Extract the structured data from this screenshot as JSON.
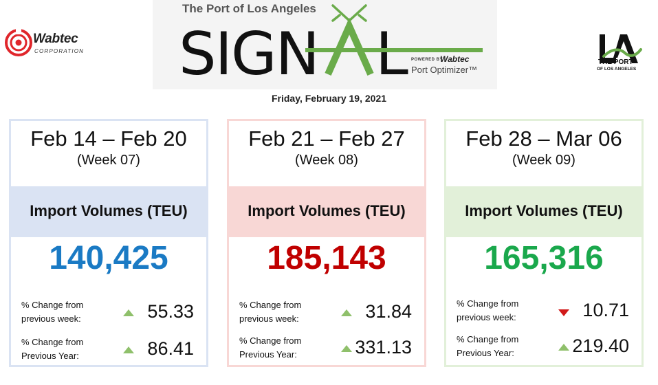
{
  "header": {
    "wabtec_logo": {
      "name": "Wabtec",
      "subtitle": "CORPORATION"
    },
    "banner": {
      "top_text": "The Port of Los Angeles",
      "signal_word": "SIGNAL",
      "powered_by": "POWERED BY",
      "powered_brand": "Wabtec",
      "product": "Port Optimizer™"
    },
    "la_logo": {
      "line1": "THE PORT",
      "line2": "OF LOS ANGELES"
    },
    "date": "Friday, February 19, 2021"
  },
  "colors": {
    "card1_accent": "#1a7ac4",
    "card2_accent": "#c00000",
    "card3_accent": "#1aa84c",
    "card1_band": "#dae3f3",
    "card2_band": "#f8d7d5",
    "card3_band": "#e2f0d9",
    "arrow_up": "#8fc06b",
    "arrow_down": "#d11a1a",
    "signal_green": "#6aab4a"
  },
  "cards": [
    {
      "dates": "Feb 14 – Feb 20",
      "week": "(Week 07)",
      "metric_title": "Import Volumes (TEU)",
      "value": "140,425",
      "change_week_label_1": "% Change from",
      "change_week_label_2": "previous week:",
      "change_week_direction": "up",
      "change_week_value": "55.33",
      "change_year_label_1": "% Change from",
      "change_year_label_2": "Previous Year:",
      "change_year_direction": "up",
      "change_year_value": "86.41"
    },
    {
      "dates": "Feb 21 – Feb 27",
      "week": "(Week 08)",
      "metric_title": "Import Volumes (TEU)",
      "value": "185,143",
      "change_week_label_1": "% Change from",
      "change_week_label_2": "previous week:",
      "change_week_direction": "up",
      "change_week_value": "31.84",
      "change_year_label_1": "% Change from",
      "change_year_label_2": "Previous Year:",
      "change_year_direction": "up",
      "change_year_value": "331.13"
    },
    {
      "dates": "Feb 28 – Mar 06",
      "week": "(Week 09)",
      "metric_title": "Import Volumes (TEU)",
      "value": "165,316",
      "change_week_label_1": "% Change from",
      "change_week_label_2": "previous week:",
      "change_week_direction": "down",
      "change_week_value": "10.71",
      "change_year_label_1": "% Change from",
      "change_year_label_2": "Previous Year:",
      "change_year_direction": "up",
      "change_year_value": "219.40"
    }
  ]
}
